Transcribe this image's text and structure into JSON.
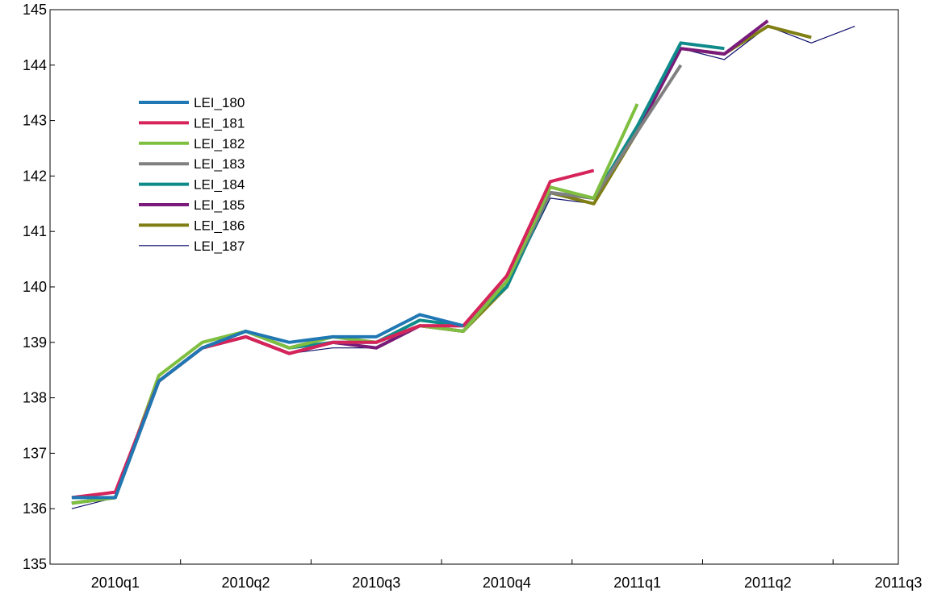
{
  "chart_data": {
    "type": "line",
    "title": "",
    "xlabel": "",
    "ylabel": "",
    "ylim": [
      135,
      145
    ],
    "yticks": [
      135,
      136,
      137,
      138,
      139,
      140,
      141,
      142,
      143,
      144,
      145
    ],
    "x": [
      "2010m1",
      "2010m2",
      "2010m3",
      "2010m4",
      "2010m5",
      "2010m6",
      "2010m7",
      "2010m8",
      "2010m9",
      "2010m10",
      "2010m11",
      "2010m12",
      "2011m1",
      "2011m2",
      "2011m3",
      "2011m4",
      "2011m5",
      "2011m6",
      "2011m7"
    ],
    "xtick_labels": [
      "2010q1",
      "2010q2",
      "2010q3",
      "2010q4",
      "2011q1",
      "2011q2",
      "2011q3"
    ],
    "grid": false,
    "legend_position": "upper-left",
    "series": [
      {
        "name": "LEI_180",
        "color": "#1f77b4",
        "values": [
          136.2,
          136.2,
          138.3,
          138.9,
          139.2,
          139.0,
          139.1,
          139.1,
          139.5,
          139.3,
          null,
          null,
          null,
          null,
          null,
          null,
          null,
          null,
          null
        ]
      },
      {
        "name": "LEI_181",
        "color": "#d6245b",
        "values": [
          136.2,
          136.3,
          138.3,
          138.9,
          139.1,
          138.8,
          139.0,
          139.0,
          139.3,
          139.3,
          140.2,
          141.9,
          142.1,
          null,
          null,
          null,
          null,
          null,
          null
        ]
      },
      {
        "name": "LEI_182",
        "color": "#7fbf3f",
        "values": [
          136.1,
          136.2,
          138.4,
          139.0,
          139.2,
          138.9,
          139.1,
          139.0,
          139.3,
          139.2,
          140.1,
          141.8,
          141.6,
          143.3,
          null,
          null,
          null,
          null,
          null
        ]
      },
      {
        "name": "LEI_183",
        "color": "#808080",
        "values": [
          136.1,
          136.2,
          138.3,
          138.9,
          139.2,
          138.9,
          139.1,
          139.0,
          139.3,
          139.3,
          140.1,
          141.7,
          141.6,
          142.8,
          144.0,
          null,
          null,
          null,
          null
        ]
      },
      {
        "name": "LEI_184",
        "color": "#0f8a8a",
        "values": [
          136.1,
          136.2,
          138.3,
          138.9,
          139.2,
          138.9,
          139.0,
          139.0,
          139.4,
          139.3,
          140.0,
          141.7,
          141.6,
          142.9,
          144.4,
          144.3,
          null,
          null,
          null
        ]
      },
      {
        "name": "LEI_185",
        "color": "#7a1a7a",
        "values": [
          136.1,
          136.2,
          138.3,
          138.9,
          139.1,
          138.8,
          139.0,
          138.9,
          139.3,
          139.2,
          140.1,
          141.7,
          141.6,
          142.8,
          144.3,
          144.2,
          144.8,
          null,
          null
        ]
      },
      {
        "name": "LEI_186",
        "color": "#7f7f14",
        "values": [
          136.1,
          136.2,
          138.3,
          138.9,
          139.1,
          138.8,
          139.0,
          138.9,
          139.3,
          139.2,
          140.0,
          141.7,
          141.5,
          142.8,
          144.3,
          144.2,
          144.7,
          144.5,
          null
        ]
      },
      {
        "name": "LEI_187",
        "color": "#0b0b6b",
        "values": [
          136.0,
          136.2,
          138.3,
          138.9,
          139.1,
          138.8,
          138.9,
          138.9,
          139.3,
          139.2,
          140.0,
          141.6,
          141.5,
          142.8,
          144.3,
          144.1,
          144.7,
          144.4,
          144.7
        ]
      }
    ]
  }
}
